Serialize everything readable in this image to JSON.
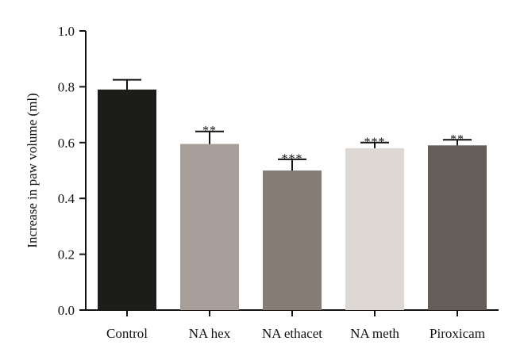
{
  "chart_data": {
    "type": "bar",
    "ylabel": "Increase in paw volume (ml)",
    "ylim": [
      0,
      1.0
    ],
    "yticks": [
      "0.0",
      "0.2",
      "0.4",
      "0.6",
      "0.8",
      "1.0"
    ],
    "grid": false,
    "categories": [
      "Control",
      "NA hex",
      "NA ethacet",
      "NA meth",
      "Piroxicam"
    ],
    "values": [
      0.79,
      0.595,
      0.5,
      0.58,
      0.59
    ],
    "errors": [
      0.035,
      0.045,
      0.04,
      0.02,
      0.02
    ],
    "significance": [
      "",
      "**",
      "***",
      "***",
      "**"
    ],
    "colors": [
      "#1c1c1a",
      "#a79d99",
      "#857c75",
      "#ddd8d3",
      "#655d58"
    ]
  }
}
